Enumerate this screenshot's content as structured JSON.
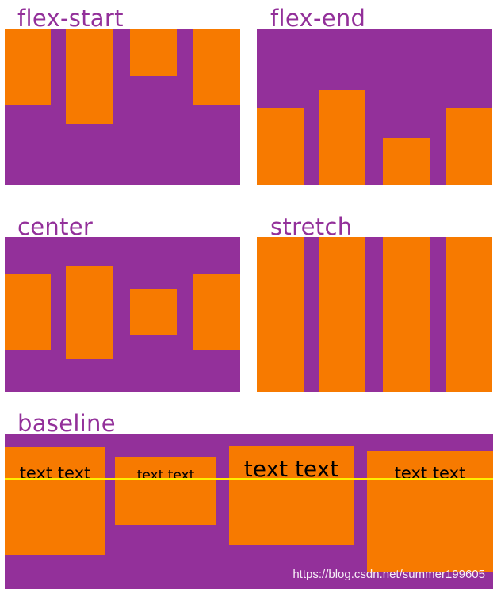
{
  "colors": {
    "panel": "#93309a",
    "box": "#f77a00",
    "title": "#93309a",
    "baseline": "#ffee00"
  },
  "titles": {
    "flex_start": "flex-start",
    "flex_end": "flex-end",
    "center": "center",
    "stretch": "stretch",
    "baseline": "baseline"
  },
  "baseline_boxes": [
    "text text",
    "text text",
    "text text",
    "text text"
  ],
  "watermark": "https://blog.csdn.net/summer199605"
}
